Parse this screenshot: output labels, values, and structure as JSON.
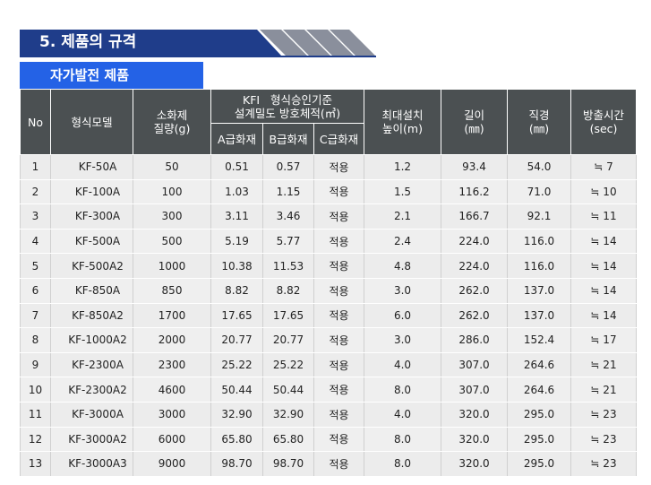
{
  "page": {
    "title": "5. 제품의 규격",
    "subtitle": "자가발전 제품"
  },
  "table": {
    "headers": {
      "no": "No",
      "model": "형식모델",
      "agent_amount_line1": "소화제",
      "agent_amount_line2": "질량(g)",
      "kfi_line1": "KFI   형식승인기준",
      "kfi_line2": "설계밀도 방호체적(㎥)",
      "class_a": "A급화재",
      "class_b": "B급화재",
      "class_c": "C급화재",
      "height_line1": "최대설치",
      "height_line2": "높이(m)",
      "length_line1": "길이",
      "length_line2": "(㎜)",
      "diameter_line1": "직경",
      "diameter_line2": "(㎜)",
      "discharge_line1": "방출시간",
      "discharge_line2": "(sec)"
    },
    "rows": [
      {
        "no": "1",
        "model": "KF-50A",
        "mass": "50",
        "a": "0.51",
        "b": "0.57",
        "c": "적용",
        "height": "1.2",
        "length": "93.4",
        "diameter": "54.0",
        "time": "≒ 7"
      },
      {
        "no": "2",
        "model": "KF-100A",
        "mass": "100",
        "a": "1.03",
        "b": "1.15",
        "c": "적용",
        "height": "1.5",
        "length": "116.2",
        "diameter": "71.0",
        "time": "≒ 10"
      },
      {
        "no": "3",
        "model": "KF-300A",
        "mass": "300",
        "a": "3.11",
        "b": "3.46",
        "c": "적용",
        "height": "2.1",
        "length": "166.7",
        "diameter": "92.1",
        "time": "≒ 11"
      },
      {
        "no": "4",
        "model": "KF-500A",
        "mass": "500",
        "a": "5.19",
        "b": "5.77",
        "c": "적용",
        "height": "2.4",
        "length": "224.0",
        "diameter": "116.0",
        "time": "≒ 14"
      },
      {
        "no": "5",
        "model": "KF-500A2",
        "mass": "1000",
        "a": "10.38",
        "b": "11.53",
        "c": "적용",
        "height": "4.8",
        "length": "224.0",
        "diameter": "116.0",
        "time": "≒ 14"
      },
      {
        "no": "6",
        "model": "KF-850A",
        "mass": "850",
        "a": "8.82",
        "b": "8.82",
        "c": "적용",
        "height": "3.0",
        "length": "262.0",
        "diameter": "137.0",
        "time": "≒ 14"
      },
      {
        "no": "7",
        "model": "KF-850A2",
        "mass": "1700",
        "a": "17.65",
        "b": "17.65",
        "c": "적용",
        "height": "6.0",
        "length": "262.0",
        "diameter": "137.0",
        "time": "≒ 14"
      },
      {
        "no": "8",
        "model": "KF-1000A2",
        "mass": "2000",
        "a": "20.77",
        "b": "20.77",
        "c": "적용",
        "height": "3.0",
        "length": "286.0",
        "diameter": "152.4",
        "time": "≒ 17"
      },
      {
        "no": "9",
        "model": "KF-2300A",
        "mass": "2300",
        "a": "25.22",
        "b": "25.22",
        "c": "적용",
        "height": "4.0",
        "length": "307.0",
        "diameter": "264.6",
        "time": "≒ 21"
      },
      {
        "no": "10",
        "model": "KF-2300A2",
        "mass": "4600",
        "a": "50.44",
        "b": "50.44",
        "c": "적용",
        "height": "8.0",
        "length": "307.0",
        "diameter": "264.6",
        "time": "≒ 21"
      },
      {
        "no": "11",
        "model": "KF-3000A",
        "mass": "3000",
        "a": "32.90",
        "b": "32.90",
        "c": "적용",
        "height": "4.0",
        "length": "320.0",
        "diameter": "295.0",
        "time": "≒ 23"
      },
      {
        "no": "12",
        "model": "KF-3000A2",
        "mass": "6000",
        "a": "65.80",
        "b": "65.80",
        "c": "적용",
        "height": "8.0",
        "length": "320.0",
        "diameter": "295.0",
        "time": "≒ 23"
      },
      {
        "no": "13",
        "model": "KF-3000A3",
        "mass": "9000",
        "a": "98.70",
        "b": "98.70",
        "c": "적용",
        "height": "8.0",
        "length": "320.0",
        "diameter": "295.0",
        "time": "≒ 23"
      }
    ]
  },
  "colors": {
    "title_bar": "#1f3d8a",
    "subtitle_bar": "#2462e6",
    "header_bg": "#4b5052",
    "row_bg": "#efefef"
  }
}
